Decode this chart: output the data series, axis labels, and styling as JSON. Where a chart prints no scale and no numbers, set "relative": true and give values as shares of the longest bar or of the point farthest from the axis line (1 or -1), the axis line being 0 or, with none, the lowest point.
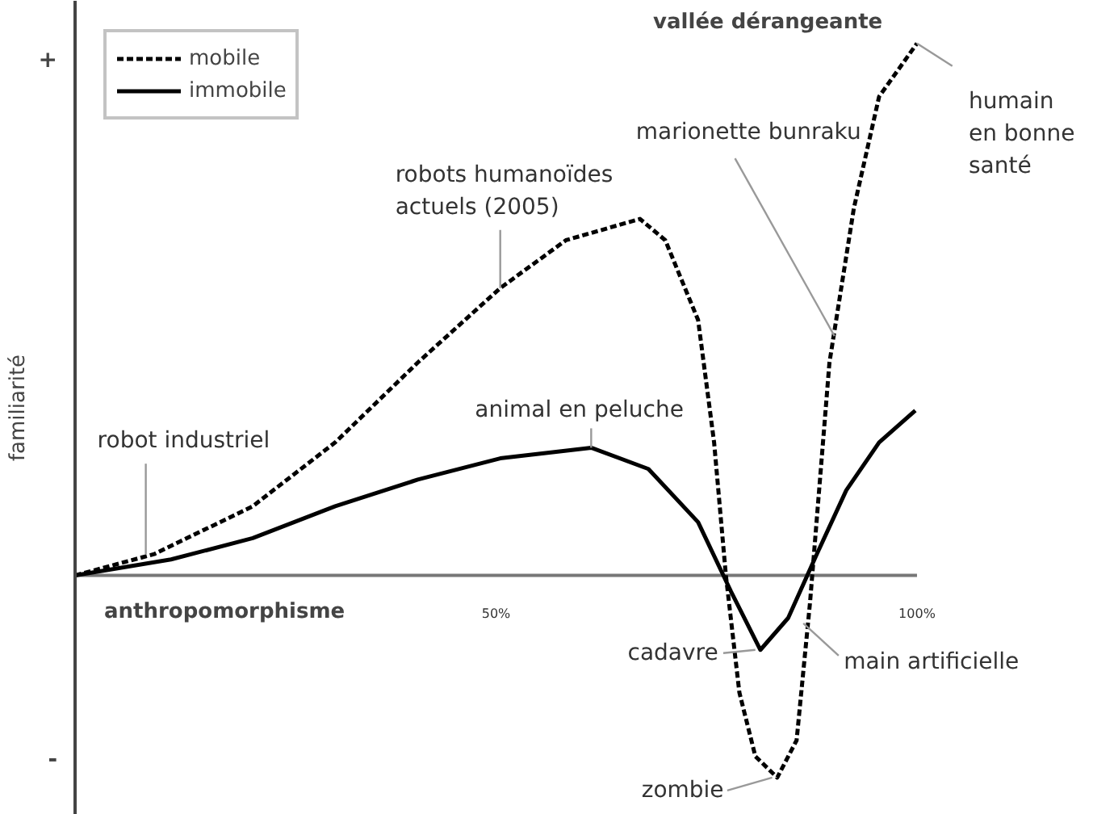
{
  "chart_data": {
    "type": "line",
    "relative": true,
    "xlabel": "anthropomorphisme",
    "ylabel": "familiarité",
    "x": [
      0,
      9.4,
      21.1,
      30.9,
      40.7,
      50.5,
      58.3,
      67.1,
      70.1,
      74.0,
      75.9,
      77.3,
      78.9,
      80.8,
      83.4,
      85.7,
      87.3,
      89.6,
      92.5,
      95.5,
      100
    ],
    "xlim": [
      0,
      100
    ],
    "xticks": [
      {
        "value": 50,
        "label": "50%"
      },
      {
        "value": 100,
        "label": "100%"
      }
    ],
    "series": [
      {
        "name": "mobile",
        "color": "#000000",
        "line_style": "dashed",
        "values": [
          0,
          0.04,
          0.13,
          0.25,
          0.4,
          0.54,
          0.63,
          0.67,
          0.63,
          0.48,
          0.25,
          0,
          -0.22,
          -0.34,
          -0.38,
          -0.31,
          -0.05,
          0.4,
          0.69,
          0.9,
          1.0
        ]
      },
      {
        "name": "immobile",
        "color": "#000000",
        "line_style": "solid",
        "x": [
          0,
          11.4,
          21.1,
          30.9,
          40.7,
          50.5,
          61.3,
          68.1,
          74.0,
          77.9,
          81.4,
          84.7,
          88.1,
          91.6,
          95.5,
          99.8
        ],
        "values": [
          0,
          0.03,
          0.07,
          0.13,
          0.18,
          0.22,
          0.24,
          0.2,
          0.1,
          -0.03,
          -0.14,
          -0.08,
          0.04,
          0.16,
          0.25,
          0.31
        ]
      }
    ],
    "annotations": [
      "+",
      "-",
      "vallée dérangeante",
      {
        "text": "robot industriel",
        "x": 8.4,
        "y": 0.04
      },
      {
        "text": "robots humanoïdes\nactuels (2005)",
        "x": 50.5,
        "y": 0.54
      },
      {
        "text": "animal en peluche",
        "x": 61.3,
        "y": 0.24
      },
      {
        "text": "marionette bunraku",
        "x": 90.2,
        "y": 0.45
      },
      {
        "text": "humain\nen bonne\nsanté",
        "x": 100,
        "y": 1.0
      },
      {
        "text": "cadavre",
        "x": 80.8,
        "y": -0.14
      },
      {
        "text": "main artificielle",
        "x": 86.5,
        "y": -0.09
      },
      {
        "text": "zombie",
        "x": 82.8,
        "y": -0.38
      }
    ],
    "grid": false,
    "legend": "top left"
  }
}
